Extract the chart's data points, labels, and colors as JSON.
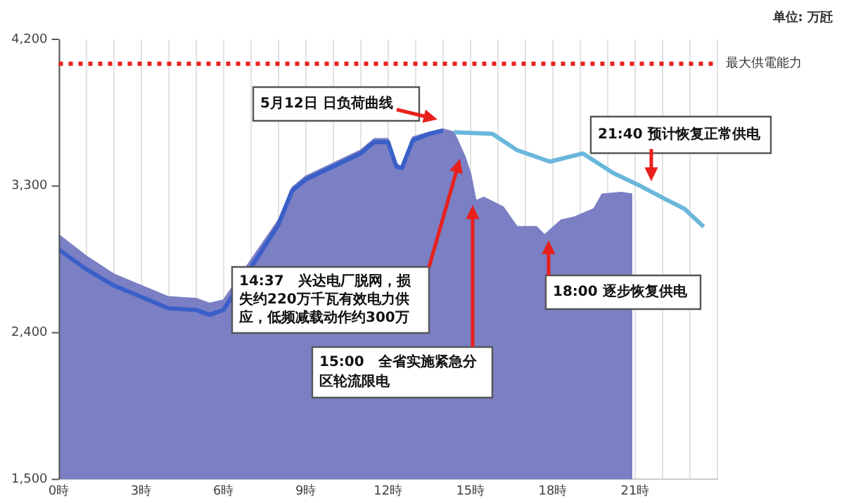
{
  "chart_data": {
    "type": "area",
    "xlim": [
      0,
      24
    ],
    "xticks": [
      {
        "value": 0,
        "label": "0時"
      },
      {
        "value": 1,
        "label": null
      },
      {
        "value": 2,
        "label": null
      },
      {
        "value": 3,
        "label": "3時"
      },
      {
        "value": 4,
        "label": null
      },
      {
        "value": 5,
        "label": null
      },
      {
        "value": 6,
        "label": "6時"
      },
      {
        "value": 7,
        "label": null
      },
      {
        "value": 8,
        "label": null
      },
      {
        "value": 9,
        "label": "9時"
      },
      {
        "value": 10,
        "label": null
      },
      {
        "value": 11,
        "label": null
      },
      {
        "value": 12,
        "label": "12時"
      },
      {
        "value": 13,
        "label": null
      },
      {
        "value": 14,
        "label": null
      },
      {
        "value": 15,
        "label": "15時"
      },
      {
        "value": 16,
        "label": null
      },
      {
        "value": 17,
        "label": null
      },
      {
        "value": 18,
        "label": "18時"
      },
      {
        "value": 19,
        "label": null
      },
      {
        "value": 20,
        "label": null
      },
      {
        "value": 21,
        "label": "21時"
      },
      {
        "value": 22,
        "label": null
      },
      {
        "value": 23,
        "label": null
      },
      {
        "value": 24,
        "label": null
      }
    ],
    "ylim": [
      1500,
      4200
    ],
    "yticks": [
      {
        "value": 1500,
        "label": "1,500"
      },
      {
        "value": 2400,
        "label": "2,400"
      },
      {
        "value": 3300,
        "label": "3,300"
      },
      {
        "value": 4200,
        "label": "4,200"
      }
    ],
    "grid": "x",
    "legend": false,
    "marker": "none",
    "series": [
      {
        "color": "#7b7fc4",
        "x": [
          0,
          1,
          2,
          3,
          4,
          5,
          5.5,
          6,
          7,
          7.5,
          8,
          8.5,
          9,
          10,
          11,
          11.5,
          12,
          12.3,
          12.5,
          12.9,
          13.5,
          14,
          14.4,
          14.8,
          15,
          15.2,
          15.5,
          16.2,
          16.7,
          17.4,
          17.7,
          18.3,
          18.8,
          19.5,
          19.8,
          20.5,
          20.9
        ],
        "values": [
          3000,
          2870,
          2760,
          2690,
          2620,
          2610,
          2580,
          2600,
          null,
          null,
          3090,
          3290,
          3360,
          3440,
          3520,
          3590,
          3590,
          3440,
          3410,
          3600,
          3630,
          3650,
          3630,
          3480,
          3380,
          3210,
          3230,
          3170,
          3050,
          3050,
          3000,
          3090,
          3110,
          3160,
          3250,
          3260,
          3250
        ]
      },
      {
        "type": "line",
        "color": "#3a5fc8",
        "x": [
          0,
          1,
          2,
          3,
          4,
          5,
          5.5,
          6,
          7,
          7.5,
          8,
          8.5,
          9,
          10,
          11,
          11.5,
          12,
          12.3,
          12.5,
          12.9,
          13.5,
          14
        ],
        "values": [
          2910,
          2790,
          2690,
          2620,
          2550,
          2540,
          2510,
          2540,
          null,
          null,
          3060,
          3270,
          3340,
          3420,
          3500,
          3570,
          3570,
          3420,
          3410,
          3580,
          3620,
          3640
        ]
      },
      {
        "type": "line",
        "color": "#6ab7dc",
        "x": [
          14.4,
          15.8,
          16.7,
          17.9,
          19.1,
          20.2,
          21.2,
          22.1,
          22.8,
          23.5
        ],
        "values": [
          3630,
          3620,
          3520,
          3450,
          3500,
          3380,
          3300,
          3220,
          3160,
          3050
        ]
      }
    ],
    "ref_lines": [
      {
        "axis": "y",
        "value": 4050,
        "label": "最大供電能力",
        "color": "#e8201c",
        "line_style": "dotted"
      }
    ],
    "annotations": [
      "单位: 万瓩",
      "5月12日 日负荷曲线",
      "14:37　兴达电厂脱网，损失约220万千瓦有效电力供应，低频减载动作约300万",
      "15:00　全省实施紧急分区轮流限电",
      "18:00 逐步恢复供电",
      "21:40 预计恢复正常供电"
    ]
  }
}
